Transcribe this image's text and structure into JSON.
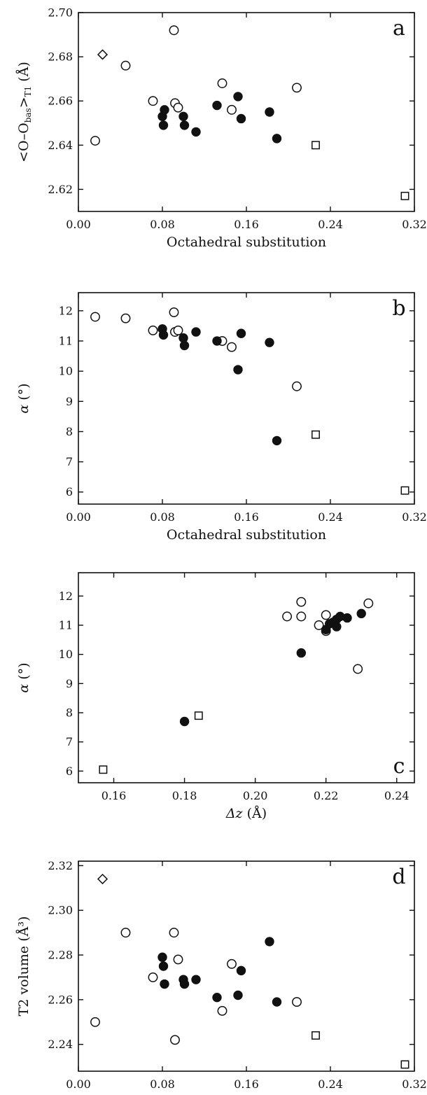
{
  "chart_data": [
    {
      "type": "scatter",
      "panel_label": "a",
      "xlabel": "Octahedral substitution",
      "ylabel": "<O–O",
      "ylabel_sub": "bas",
      "ylabel_end": ">",
      "ylabel_sub2": "T1",
      "ylabel_unit": "(Å)",
      "xlim": [
        0.0,
        0.32
      ],
      "ylim": [
        2.61,
        2.7
      ],
      "xticks": [
        "0.00",
        "0.08",
        "0.16",
        "0.24",
        "0.32"
      ],
      "xtick_values": [
        0.0,
        0.08,
        0.16,
        0.24,
        0.32
      ],
      "yticks": [
        "2.62",
        "2.64",
        "2.66",
        "2.68",
        "2.70"
      ],
      "ytick_values": [
        2.62,
        2.64,
        2.66,
        2.68,
        2.7
      ],
      "series": [
        {
          "marker": "open-circle",
          "points": [
            [
              0.016,
              2.642
            ],
            [
              0.045,
              2.676
            ],
            [
              0.071,
              2.66
            ],
            [
              0.091,
              2.692
            ],
            [
              0.092,
              2.659
            ],
            [
              0.095,
              2.657
            ],
            [
              0.137,
              2.668
            ],
            [
              0.146,
              2.656
            ],
            [
              0.208,
              2.666
            ]
          ]
        },
        {
          "marker": "filled-circle",
          "points": [
            [
              0.08,
              2.653
            ],
            [
              0.081,
              2.649
            ],
            [
              0.082,
              2.656
            ],
            [
              0.1,
              2.653
            ],
            [
              0.101,
              2.649
            ],
            [
              0.112,
              2.646
            ],
            [
              0.132,
              2.658
            ],
            [
              0.152,
              2.662
            ],
            [
              0.155,
              2.652
            ],
            [
              0.182,
              2.655
            ],
            [
              0.189,
              2.643
            ]
          ]
        },
        {
          "marker": "open-square",
          "points": [
            [
              0.226,
              2.64
            ],
            [
              0.311,
              2.617
            ]
          ]
        },
        {
          "marker": "open-diamond",
          "points": [
            [
              0.023,
              2.681
            ]
          ]
        }
      ]
    },
    {
      "type": "scatter",
      "panel_label": "b",
      "xlabel": "Octahedral substitution",
      "ylabel": "α",
      "ylabel_unit": "(°)",
      "xlim": [
        0.0,
        0.32
      ],
      "ylim": [
        5.6,
        12.6
      ],
      "xticks": [
        "0.00",
        "0.08",
        "0.16",
        "0.24",
        "0.32"
      ],
      "xtick_values": [
        0.0,
        0.08,
        0.16,
        0.24,
        0.32
      ],
      "yticks": [
        "6",
        "7",
        "8",
        "9",
        "10",
        "11",
        "12"
      ],
      "ytick_values": [
        6,
        7,
        8,
        9,
        10,
        11,
        12
      ],
      "series": [
        {
          "marker": "open-circle",
          "points": [
            [
              0.016,
              11.8
            ],
            [
              0.045,
              11.75
            ],
            [
              0.071,
              11.35
            ],
            [
              0.091,
              11.95
            ],
            [
              0.092,
              11.3
            ],
            [
              0.095,
              11.35
            ],
            [
              0.137,
              11.0
            ],
            [
              0.146,
              10.8
            ],
            [
              0.208,
              9.5
            ]
          ]
        },
        {
          "marker": "filled-circle",
          "points": [
            [
              0.08,
              11.4
            ],
            [
              0.081,
              11.2
            ],
            [
              0.1,
              11.1
            ],
            [
              0.101,
              10.85
            ],
            [
              0.112,
              11.3
            ],
            [
              0.132,
              11.0
            ],
            [
              0.152,
              10.05
            ],
            [
              0.155,
              11.25
            ],
            [
              0.182,
              10.95
            ],
            [
              0.189,
              7.7
            ]
          ]
        },
        {
          "marker": "open-square",
          "points": [
            [
              0.226,
              7.9
            ],
            [
              0.311,
              6.05
            ]
          ]
        }
      ]
    },
    {
      "type": "scatter",
      "panel_label": "c",
      "xlabel": "Δz",
      "xlabel_unit": "(Å)",
      "ylabel": "α",
      "ylabel_unit": "(°)",
      "xlim": [
        0.15,
        0.245
      ],
      "ylim": [
        5.6,
        12.8
      ],
      "xticks": [
        "0.16",
        "0.18",
        "0.20",
        "0.22",
        "0.24"
      ],
      "xtick_values": [
        0.16,
        0.18,
        0.2,
        0.22,
        0.24
      ],
      "yticks": [
        "6",
        "7",
        "8",
        "9",
        "10",
        "11",
        "12"
      ],
      "ytick_values": [
        6,
        7,
        8,
        9,
        10,
        11,
        12
      ],
      "series": [
        {
          "marker": "open-circle",
          "points": [
            [
              0.209,
              11.3
            ],
            [
              0.213,
              11.8
            ],
            [
              0.213,
              11.3
            ],
            [
              0.218,
              11.0
            ],
            [
              0.22,
              11.35
            ],
            [
              0.22,
              10.8
            ],
            [
              0.229,
              9.5
            ],
            [
              0.232,
              11.75
            ]
          ]
        },
        {
          "marker": "filled-circle",
          "points": [
            [
              0.18,
              7.7
            ],
            [
              0.213,
              10.05
            ],
            [
              0.22,
              10.85
            ],
            [
              0.221,
              11.05
            ],
            [
              0.222,
              11.1
            ],
            [
              0.223,
              10.95
            ],
            [
              0.223,
              11.2
            ],
            [
              0.224,
              11.3
            ],
            [
              0.226,
              11.25
            ],
            [
              0.23,
              11.4
            ]
          ]
        },
        {
          "marker": "open-square",
          "points": [
            [
              0.157,
              6.05
            ],
            [
              0.184,
              7.9
            ]
          ]
        }
      ]
    },
    {
      "type": "scatter",
      "panel_label": "d",
      "xlabel": "Octahedral substitution",
      "ylabel": "T2 volume",
      "ylabel_unit": "(Å³)",
      "xlim": [
        0.0,
        0.32
      ],
      "ylim": [
        2.228,
        2.322
      ],
      "xticks": [
        "0.00",
        "0.08",
        "0.16",
        "0.24",
        "0.32"
      ],
      "xtick_values": [
        0.0,
        0.08,
        0.16,
        0.24,
        0.32
      ],
      "yticks": [
        "2.24",
        "2.26",
        "2.28",
        "2.30",
        "2.32"
      ],
      "ytick_values": [
        2.24,
        2.26,
        2.28,
        2.3,
        2.32
      ],
      "series": [
        {
          "marker": "open-circle",
          "points": [
            [
              0.016,
              2.25
            ],
            [
              0.045,
              2.29
            ],
            [
              0.071,
              2.27
            ],
            [
              0.091,
              2.29
            ],
            [
              0.092,
              2.242
            ],
            [
              0.095,
              2.278
            ],
            [
              0.137,
              2.255
            ],
            [
              0.146,
              2.276
            ],
            [
              0.208,
              2.259
            ]
          ]
        },
        {
          "marker": "filled-circle",
          "points": [
            [
              0.08,
              2.279
            ],
            [
              0.081,
              2.275
            ],
            [
              0.082,
              2.267
            ],
            [
              0.1,
              2.269
            ],
            [
              0.101,
              2.267
            ],
            [
              0.112,
              2.269
            ],
            [
              0.132,
              2.261
            ],
            [
              0.152,
              2.262
            ],
            [
              0.155,
              2.273
            ],
            [
              0.182,
              2.286
            ],
            [
              0.189,
              2.259
            ]
          ]
        },
        {
          "marker": "open-square",
          "points": [
            [
              0.226,
              2.244
            ],
            [
              0.311,
              2.231
            ]
          ]
        },
        {
          "marker": "open-diamond",
          "points": [
            [
              0.023,
              2.314
            ]
          ]
        }
      ]
    }
  ]
}
